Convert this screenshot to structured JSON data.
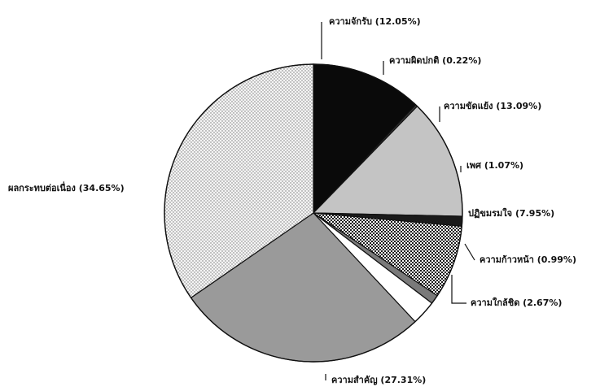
{
  "chart_data": {
    "type": "pie",
    "categories": [
      "ความจักรับ",
      "ความผิดปกติ",
      "ความขัดแย้ง",
      "เพศ",
      "ปฏิขมรมใจ",
      "ความก้าวหน้า",
      "ความใกล้ชิด",
      "ความสำคัญ",
      "ผลกระทบต่อเนื่อง"
    ],
    "values": [
      12.05,
      0.22,
      13.09,
      1.07,
      7.95,
      0.99,
      2.67,
      27.31,
      34.65
    ],
    "labels": [
      "ความจักรับ (12.05%)",
      "ความผิดปกติ (0.22%)",
      "ความขัดแย้ง (13.09%)",
      "เพศ (1.07%)",
      "ปฏิขมรมใจ (7.95%)",
      "ความก้าวหน้า (0.99%)",
      "ความใกล้ชิด (2.67%)",
      "ความสำคัญ (27.31%)",
      "ผลกระทบต่อเนื่อง (34.65%)"
    ],
    "fills": [
      "#0a0a0a",
      "#3a3a3a",
      "#c4c4c4",
      "#1a1a1a",
      "checker",
      "#7a7a7a",
      "#ffffff",
      "#9a9a9a",
      "dots"
    ],
    "slice_names": [
      "slice-acceptance",
      "slice-abnormality",
      "slice-conflict",
      "slice-sex",
      "slice-satisfaction",
      "slice-progress",
      "slice-closeness",
      "slice-importance",
      "slice-continuous-effect"
    ],
    "start_angle_deg": 90,
    "direction": "clockwise"
  }
}
